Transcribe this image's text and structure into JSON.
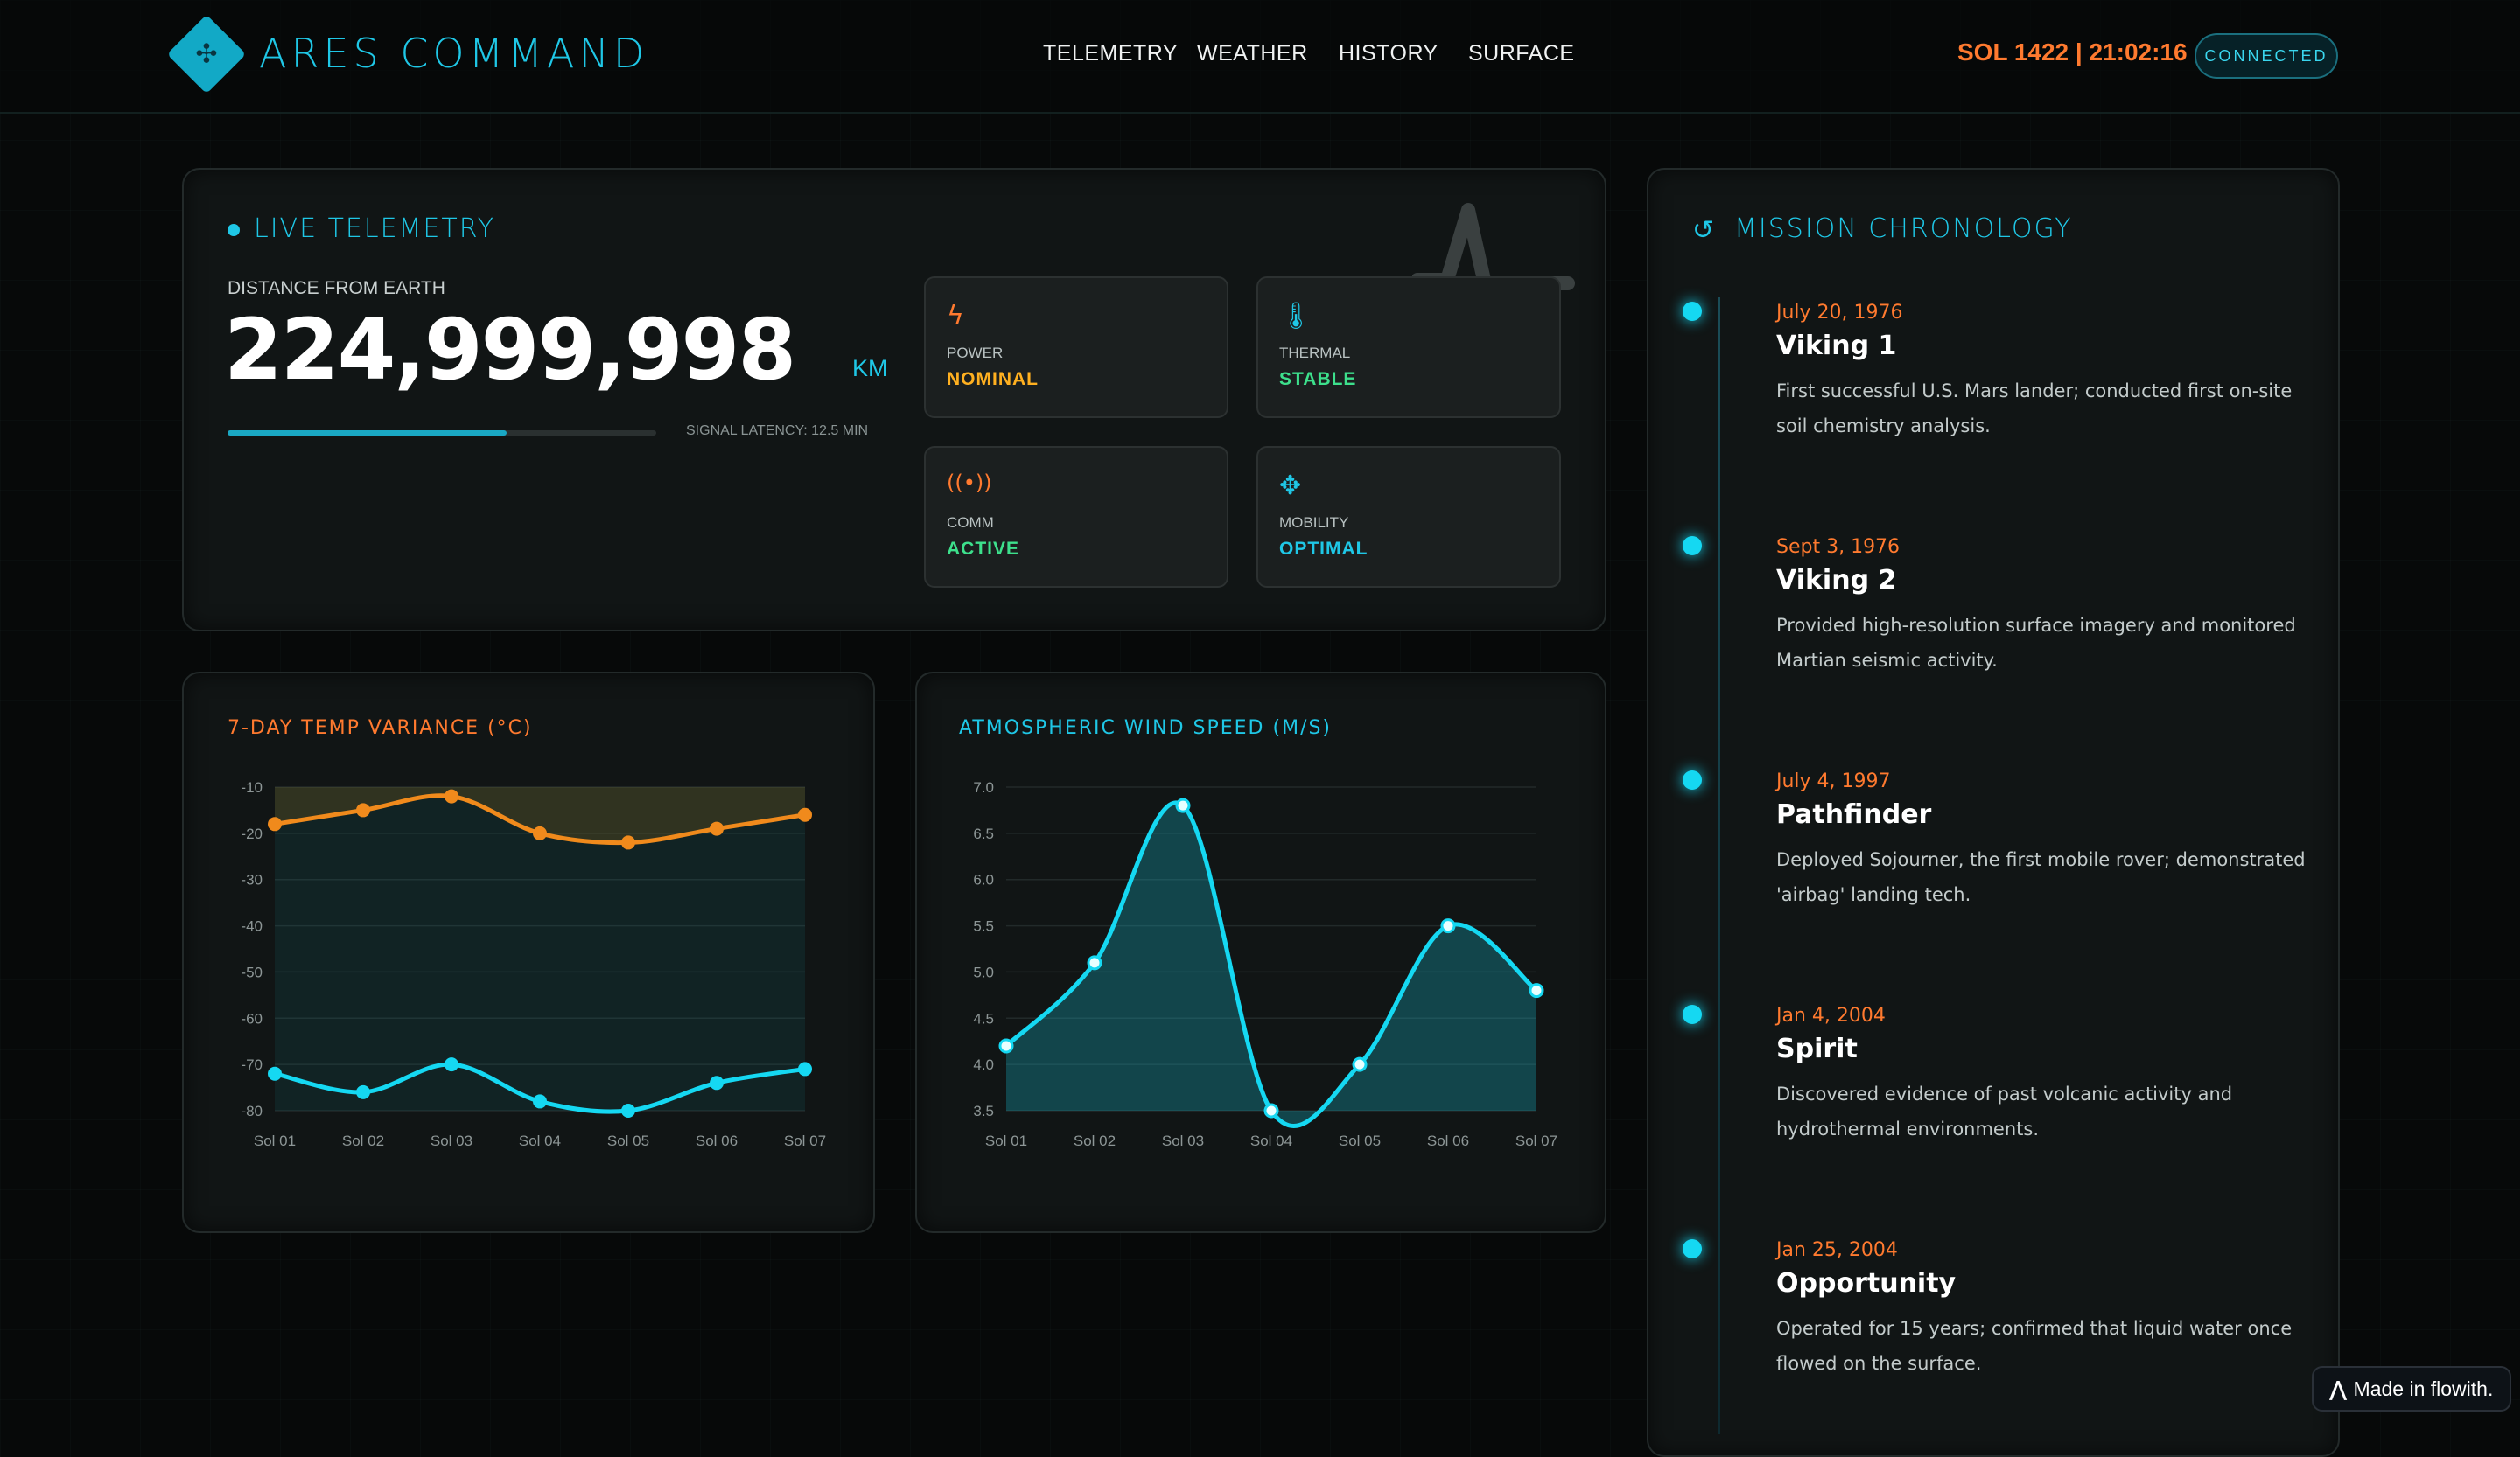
{
  "header": {
    "app_title": "ARES COMMAND",
    "logo_icon": "diamond-grid-logo",
    "nav": [
      "TELEMETRY",
      "WEATHER",
      "HISTORY",
      "SURFACE"
    ],
    "sol_readout": "SOL 1422 | 21:02:16",
    "status": "CONNECTED"
  },
  "telemetry": {
    "title": "LIVE TELEMETRY",
    "distance_label": "DISTANCE FROM EARTH",
    "distance_value": "224,999,998",
    "distance_unit": "KM",
    "signal_progress": 0.65,
    "signal_latency": "SIGNAL LATENCY: 12.5 MIN",
    "stats": [
      {
        "icon": "bolt-icon",
        "label": "POWER",
        "value": "NOMINAL",
        "color": "#ffb020"
      },
      {
        "icon": "thermometer-icon",
        "label": "THERMAL",
        "value": "STABLE",
        "color": "#3de08c"
      },
      {
        "icon": "signal-icon",
        "label": "COMM",
        "value": "ACTIVE",
        "color": "#3de08c"
      },
      {
        "icon": "move-icon",
        "label": "MOBILITY",
        "value": "OPTIMAL",
        "color": "#1fc7e6"
      }
    ]
  },
  "chart_data": [
    {
      "type": "line",
      "title": "7-DAY TEMP VARIANCE (°C)",
      "categories": [
        "Sol 01",
        "Sol 02",
        "Sol 03",
        "Sol 04",
        "Sol 05",
        "Sol 06",
        "Sol 07"
      ],
      "yticks": [
        "-10",
        "-20",
        "-30",
        "-40",
        "-50",
        "-60",
        "-70",
        "-80"
      ],
      "ylim": [
        -80,
        -10
      ],
      "series": [
        {
          "values": [
            -18,
            -15,
            -12,
            -20,
            -22,
            -19,
            -16
          ],
          "color": "#f08a1c"
        },
        {
          "values": [
            -72,
            -76,
            -70,
            -78,
            -80,
            -74,
            -71
          ],
          "color": "#15d8f2"
        }
      ]
    },
    {
      "type": "area",
      "title": "ATMOSPHERIC WIND SPEED (M/S)",
      "categories": [
        "Sol 01",
        "Sol 02",
        "Sol 03",
        "Sol 04",
        "Sol 05",
        "Sol 06",
        "Sol 07"
      ],
      "yticks": [
        "7.0",
        "6.5",
        "6.0",
        "5.5",
        "5.0",
        "4.5",
        "4.0",
        "3.5"
      ],
      "ylim": [
        3.5,
        7.0
      ],
      "series": [
        {
          "values": [
            4.2,
            5.1,
            6.8,
            3.5,
            4.0,
            5.5,
            4.8
          ],
          "color": "#15d8f2"
        }
      ]
    }
  ],
  "chronology": {
    "title": "MISSION CHRONOLOGY",
    "icon": "history-icon",
    "items": [
      {
        "date": "July 20, 1976",
        "name": "Viking 1",
        "desc": "First successful U.S. Mars lander; conducted first on-site soil chemistry analysis."
      },
      {
        "date": "Sept 3, 1976",
        "name": "Viking 2",
        "desc": "Provided high-resolution surface imagery and monitored Martian seismic activity."
      },
      {
        "date": "July 4, 1997",
        "name": "Pathfinder",
        "desc": "Deployed Sojourner, the first mobile rover; demonstrated 'airbag' landing tech."
      },
      {
        "date": "Jan 4, 2004",
        "name": "Spirit",
        "desc": "Discovered evidence of past volcanic activity and hydrothermal environments."
      },
      {
        "date": "Jan 25, 2004",
        "name": "Opportunity",
        "desc": "Operated for 15 years; confirmed that liquid water once flowed on the surface."
      }
    ]
  },
  "badge": "Made in flowith."
}
